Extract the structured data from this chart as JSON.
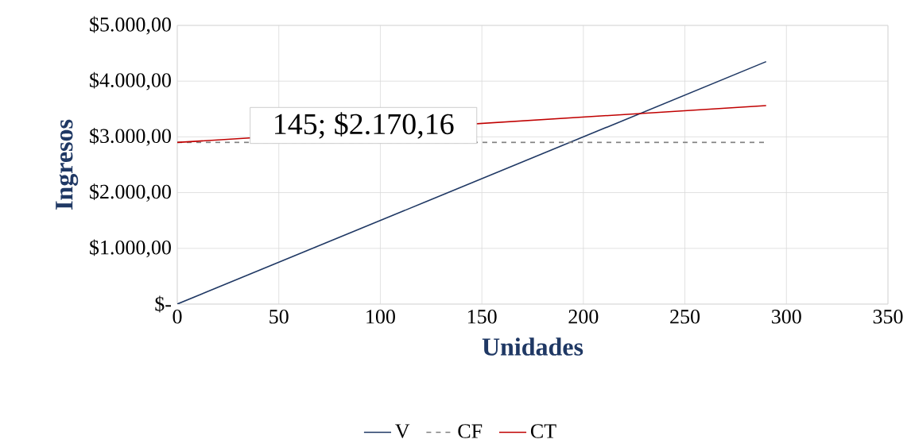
{
  "chart_data": {
    "type": "line",
    "xlabel": "Unidades",
    "ylabel": "Ingresos",
    "x": [
      0,
      290
    ],
    "series": [
      {
        "name": "V",
        "color": "#1f3864",
        "values": [
          0,
          4350
        ]
      },
      {
        "name": "CF",
        "color": "#808080",
        "values": [
          2900,
          2900
        ],
        "line_style": "dashed"
      },
      {
        "name": "CT",
        "color": "#c00000",
        "values": [
          2900,
          3560
        ]
      }
    ],
    "xlim": [
      0,
      350
    ],
    "xticks": [
      0,
      50,
      100,
      150,
      200,
      250,
      300,
      350
    ],
    "ylim": [
      0,
      5000
    ],
    "yticks": [
      {
        "value": 0,
        "label": "$-"
      },
      {
        "value": 1000,
        "label": "$1.000,00"
      },
      {
        "value": 2000,
        "label": "$2.000,00"
      },
      {
        "value": 3000,
        "label": "$3.000,00"
      },
      {
        "value": 4000,
        "label": "$4.000,00"
      },
      {
        "value": 5000,
        "label": "$5.000,00"
      }
    ],
    "annotations": [
      "145;  $2.170,16"
    ],
    "grid": true,
    "legend": "bottom"
  }
}
